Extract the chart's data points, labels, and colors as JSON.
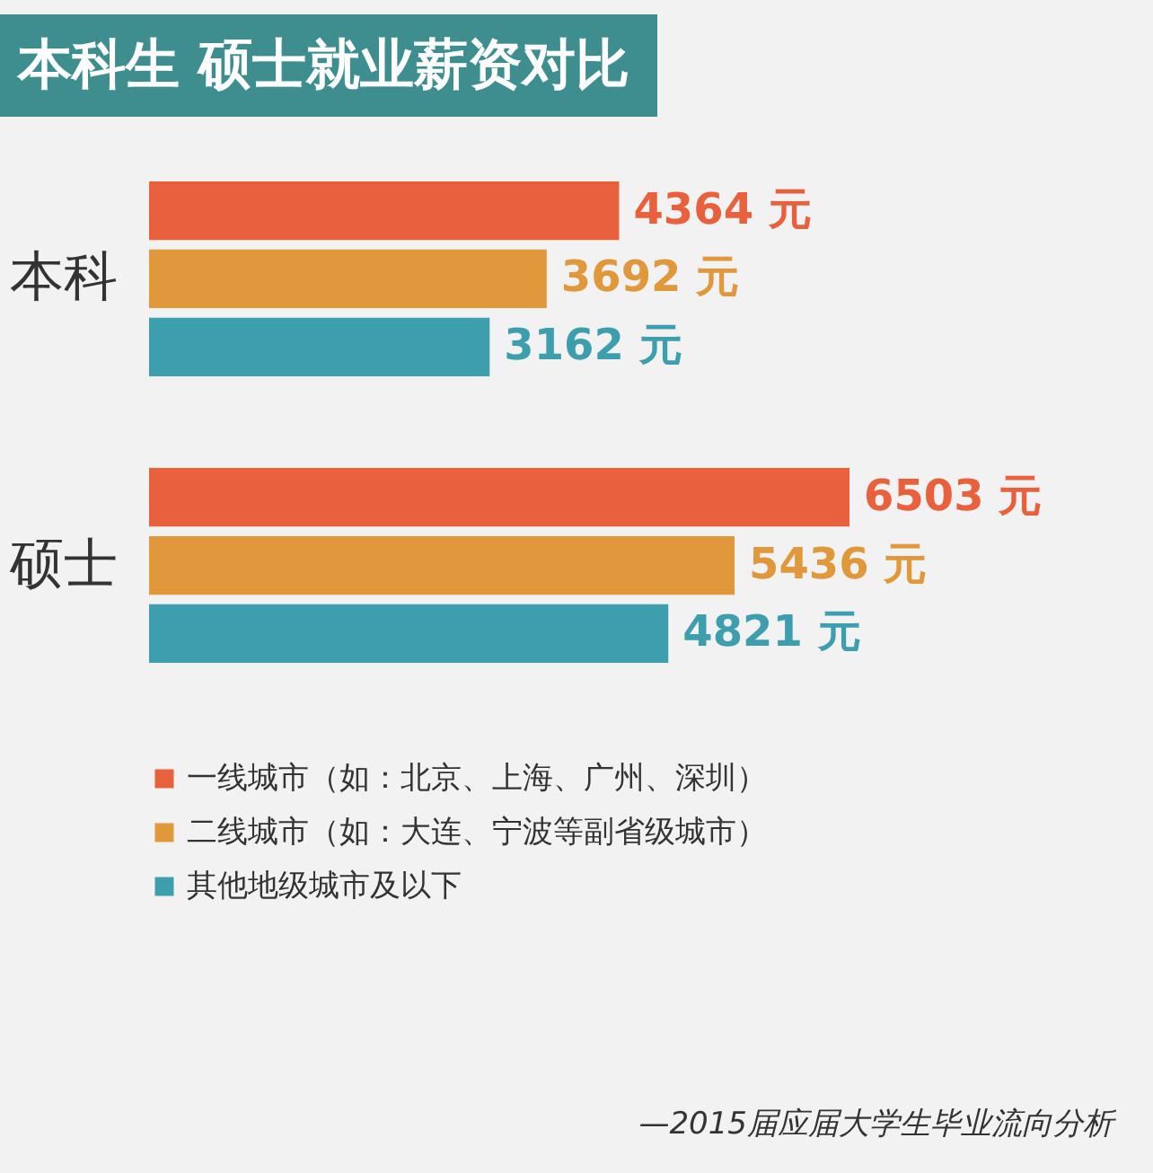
{
  "chart_data": {
    "type": "bar",
    "orientation": "horizontal",
    "title": "本科生 硕士就业薪资对比",
    "categories": [
      "本科",
      "硕士"
    ],
    "series": [
      {
        "name": "一线城市（如：北京、上海、广州、深圳）",
        "color": "#e8603c",
        "values": [
          4364,
          6503
        ],
        "value_labels": [
          "4364 元",
          "6503 元"
        ]
      },
      {
        "name": "二线城市（如：大连、宁波等副省级城市）",
        "color": "#e0983a",
        "values": [
          3692,
          5436
        ],
        "value_labels": [
          "3692 元",
          "5436 元"
        ]
      },
      {
        "name": "其他地级城市及以下",
        "color": "#3d9fae",
        "values": [
          3162,
          4821
        ],
        "value_labels": [
          "3162 元",
          "4821 元"
        ]
      }
    ],
    "grid": false,
    "legend": "bottom left",
    "annotations": [
      "—2015届应届大学生毕业流向分析"
    ]
  }
}
